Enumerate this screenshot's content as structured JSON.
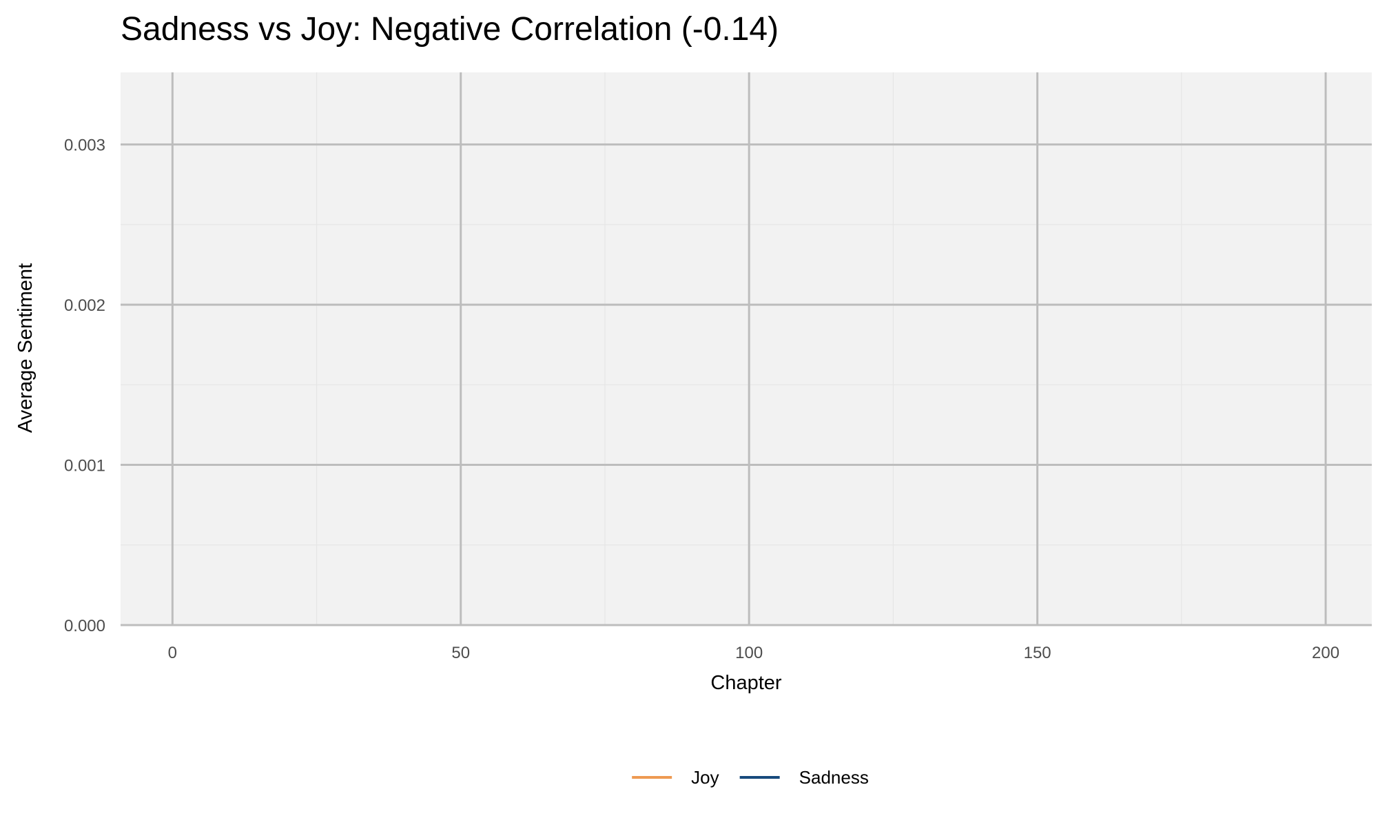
{
  "chart_data": {
    "type": "line",
    "title": "Sadness vs Joy: Negative Correlation (-0.14)",
    "xlabel": "Chapter",
    "ylabel": "Average Sentiment",
    "xlim": [
      -9,
      208
    ],
    "ylim": [
      0,
      0.00345
    ],
    "x_ticks": [
      0,
      50,
      100,
      150,
      200
    ],
    "x_tick_labels": [
      "0",
      "50",
      "100",
      "150",
      "200"
    ],
    "y_ticks": [
      0,
      0.001,
      0.002,
      0.003
    ],
    "y_tick_labels": [
      "0.000",
      "0.001",
      "0.002",
      "0.003"
    ],
    "grid": true,
    "legend_position": "bottom",
    "series": [
      {
        "name": "Joy",
        "color": "#ee9a52",
        "x": [],
        "y": []
      },
      {
        "name": "Sadness",
        "color": "#174a7c",
        "x": [],
        "y": []
      }
    ]
  }
}
